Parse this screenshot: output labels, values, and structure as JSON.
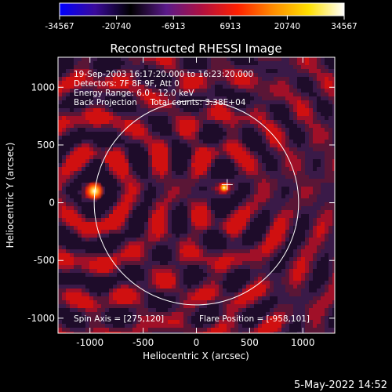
{
  "colorbar": {
    "ticks": [
      "-34567",
      "-20740",
      "-6913",
      "6913",
      "20740",
      "34567"
    ],
    "stops": [
      "#0000ff",
      "#3a0a9a",
      "#000000",
      "#5a1a8a",
      "#b01040",
      "#ff2000",
      "#ff8c00",
      "#ffe000",
      "#ffffff"
    ]
  },
  "chart_data": {
    "type": "heatmap",
    "title": "Reconstructed RHESSI Image",
    "xlabel": "Heliocentric X (arcsec)",
    "ylabel": "Heliocentric Y (arcsec)",
    "xlim": [
      -1300,
      1300
    ],
    "ylim": [
      -1130,
      1260
    ],
    "xticks": [
      -1000,
      -500,
      0,
      500,
      1000
    ],
    "yticks": [
      -1000,
      -500,
      0,
      500,
      1000
    ],
    "zlim": [
      -34567,
      34567
    ],
    "solar_limb_radius": 960,
    "sources": [
      {
        "name": "",
        "x": -958,
        "y": 101,
        "intensity": 34567
      },
      {
        "name": "",
        "x": 260,
        "y": 130,
        "intensity": 20740
      }
    ],
    "info_lines": [
      "19-Sep-2003 16:17:20.000 to 16:23:20.000",
      "Detectors: 7F 8F 9F, Att 0",
      "Energy Range: 6.0 - 12.0 keV",
      "Back Projection     Total counts: 3.38E+04"
    ],
    "spin_axis": "Spin Axis = [275,120]",
    "flare_position": "Flare Position = [-958,101]"
  },
  "footer": {
    "date": "5-May-2022 14:52"
  }
}
